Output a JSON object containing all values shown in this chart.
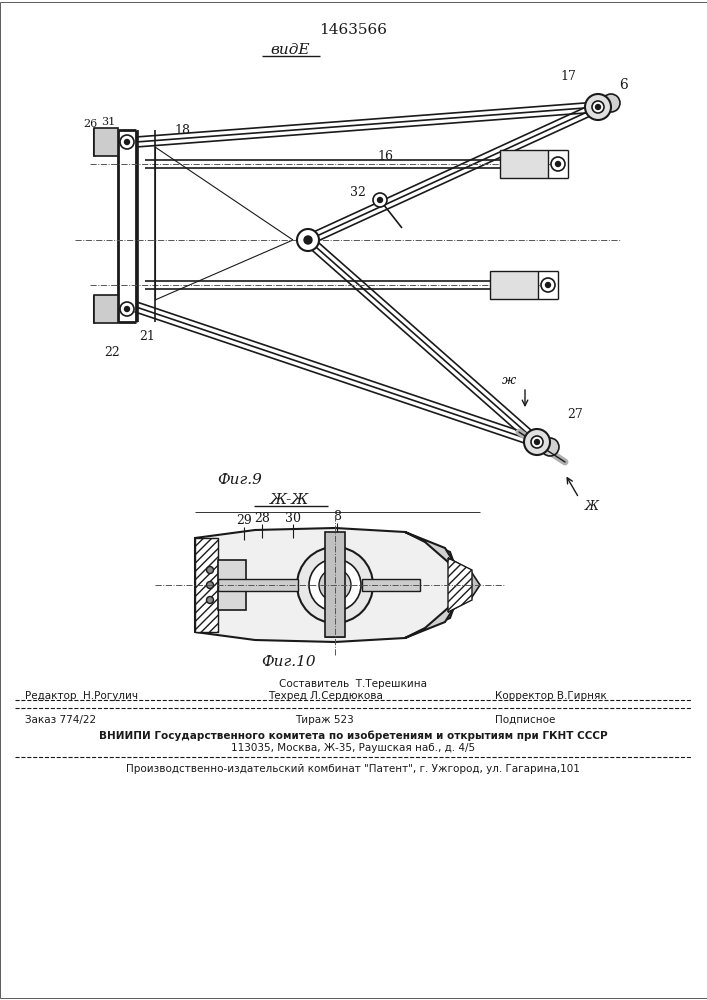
{
  "title": "1463566",
  "view_label": "видE",
  "fig9_label": "Фиг.9",
  "fig10_label": "Фиг.10",
  "jj_label": "Ж-Ж",
  "background": "#ffffff",
  "line_color": "#1a1a1a"
}
